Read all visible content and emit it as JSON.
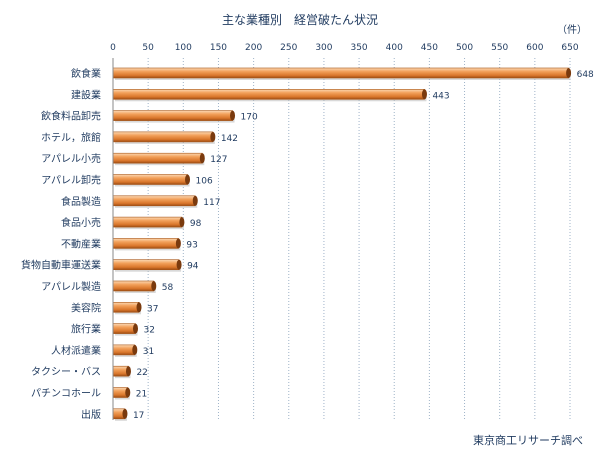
{
  "chart_data": {
    "type": "bar",
    "orientation": "horizontal",
    "title": "主な業種別　経営破たん状況",
    "unit_label": "（件）",
    "source": "東京商工リサーチ調べ",
    "categories": [
      "飲食業",
      "建設業",
      "飲食料品卸売",
      "ホテル，旅館",
      "アパレル小売",
      "アパレル卸売",
      "食品製造",
      "食品小売",
      "不動産業",
      "貨物自動車運送業",
      "アパレル製造",
      "美容院",
      "旅行業",
      "人材派遣業",
      "タクシー・バス",
      "パチンコホール",
      "出版"
    ],
    "values": [
      648,
      443,
      170,
      142,
      127,
      106,
      117,
      98,
      93,
      94,
      58,
      37,
      32,
      31,
      22,
      21,
      17
    ],
    "xlim": [
      0,
      650
    ],
    "x_ticks": [
      0,
      50,
      100,
      150,
      200,
      250,
      300,
      350,
      400,
      450,
      500,
      550,
      600,
      650
    ],
    "grid": "vertical dashed",
    "legend": "none",
    "bar_color": "#e8873a"
  }
}
